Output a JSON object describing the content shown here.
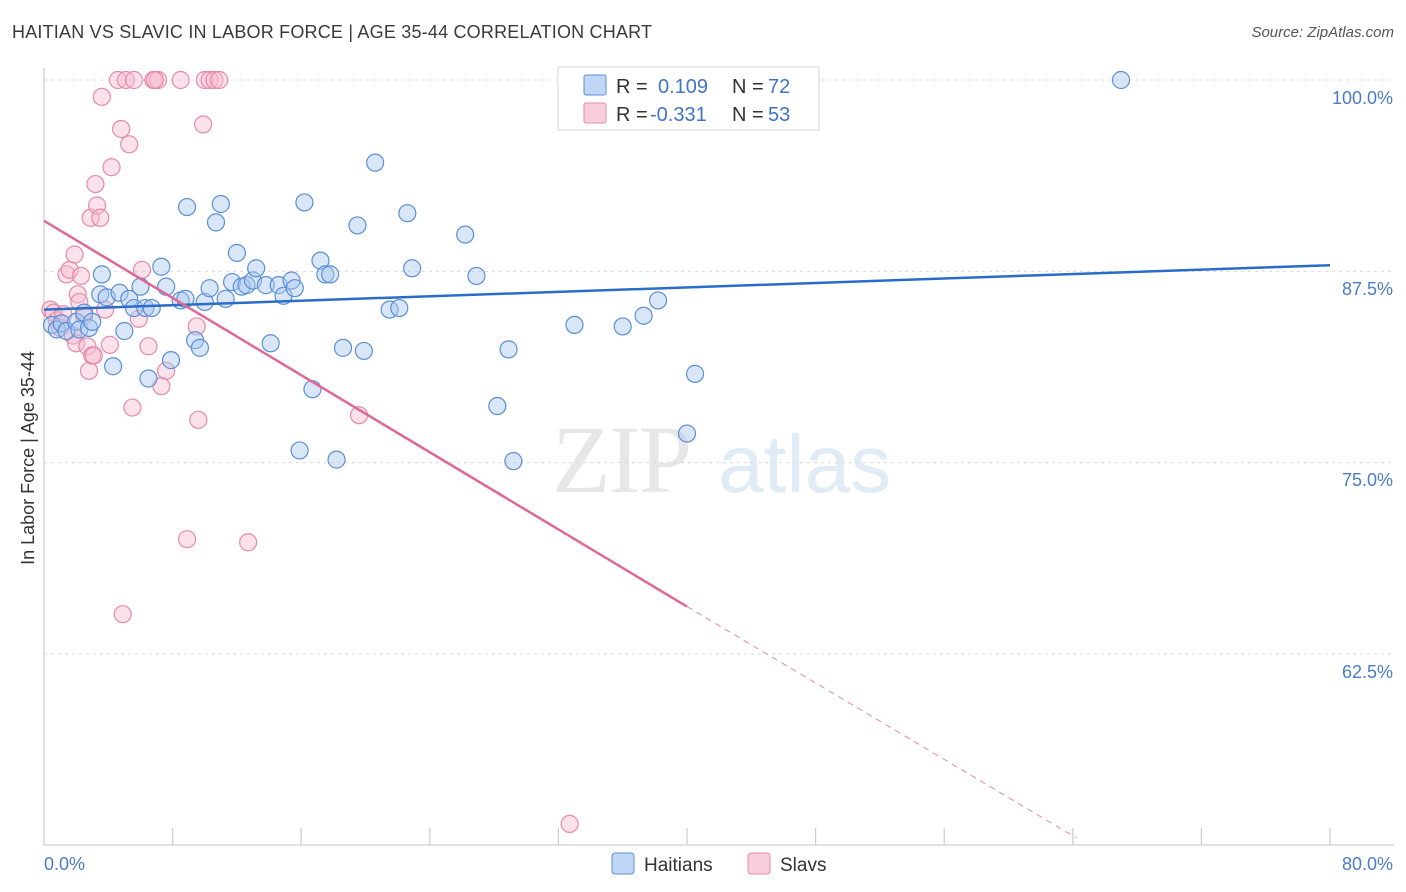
{
  "title": "HAITIAN VS SLAVIC IN LABOR FORCE | AGE 35-44 CORRELATION CHART",
  "source": "Source: ZipAtlas.com",
  "colors": {
    "haitians_fill": "#a9c8f0",
    "haitians_stroke": "#5b8fd6",
    "haitians_line": "#2a6dc9",
    "slavs_fill": "#f6bdd0",
    "slavs_stroke": "#e68aaa",
    "slavs_line": "#e06895",
    "value_text": "#3f74c6",
    "label_text": "#333333"
  },
  "legend": {
    "rows": [
      {
        "r_label": "R =",
        "r_value": "0.109",
        "n_label": "N =",
        "n_value": "72"
      },
      {
        "r_label": "R =",
        "r_value": "-0.331",
        "n_label": "N =",
        "n_value": "53"
      }
    ]
  },
  "bottom_legend": [
    "Haitians",
    "Slavs"
  ],
  "watermark": {
    "zip": "ZIP",
    "atlas": "atlas"
  },
  "chart_data": {
    "type": "scatter",
    "title": "HAITIAN VS SLAVIC IN LABOR FORCE | AGE 35-44 CORRELATION CHART",
    "xlabel": "",
    "ylabel": "In Labor Force | Age 35-44",
    "xlim": [
      0,
      80
    ],
    "ylim": [
      50.5,
      101.2
    ],
    "x_tick_labels": [
      "0.0%",
      "80.0%"
    ],
    "y_ticks": [
      100,
      87.5,
      75,
      62.5
    ],
    "y_tick_labels": [
      "100.0%",
      "87.5%",
      "75.0%",
      "62.5%"
    ],
    "grid": true,
    "series": [
      {
        "name": "Haitians",
        "r": 0.109,
        "n": 72,
        "trend": {
          "x0": 0,
          "y0": 85.0,
          "x1": 80,
          "y1": 87.9
        },
        "points": [
          [
            0.5,
            84.0
          ],
          [
            0.8,
            83.7
          ],
          [
            1.1,
            84.1
          ],
          [
            1.4,
            83.6
          ],
          [
            2.0,
            84.2
          ],
          [
            2.2,
            83.7
          ],
          [
            2.5,
            84.8
          ],
          [
            2.8,
            83.8
          ],
          [
            3.0,
            84.2
          ],
          [
            3.5,
            86.0
          ],
          [
            3.6,
            87.3
          ],
          [
            3.9,
            85.8
          ],
          [
            4.3,
            81.3
          ],
          [
            4.7,
            86.1
          ],
          [
            5.0,
            83.6
          ],
          [
            5.3,
            85.7
          ],
          [
            5.6,
            85.1
          ],
          [
            6.0,
            86.5
          ],
          [
            6.3,
            85.1
          ],
          [
            6.5,
            80.5
          ],
          [
            6.7,
            85.1
          ],
          [
            7.3,
            87.8
          ],
          [
            7.6,
            86.5
          ],
          [
            7.9,
            81.7
          ],
          [
            8.5,
            85.6
          ],
          [
            8.8,
            85.7
          ],
          [
            8.9,
            91.7
          ],
          [
            9.4,
            83.0
          ],
          [
            9.7,
            82.5
          ],
          [
            10.0,
            85.5
          ],
          [
            10.3,
            86.4
          ],
          [
            10.7,
            90.7
          ],
          [
            11.0,
            91.9
          ],
          [
            11.3,
            85.7
          ],
          [
            11.7,
            86.8
          ],
          [
            12.0,
            88.7
          ],
          [
            12.3,
            86.5
          ],
          [
            12.6,
            86.6
          ],
          [
            13.0,
            86.9
          ],
          [
            13.2,
            87.7
          ],
          [
            13.8,
            86.6
          ],
          [
            14.1,
            82.8
          ],
          [
            14.6,
            86.6
          ],
          [
            14.9,
            85.9
          ],
          [
            15.4,
            86.9
          ],
          [
            15.6,
            86.4
          ],
          [
            15.9,
            75.8
          ],
          [
            16.2,
            92.0
          ],
          [
            16.7,
            79.8
          ],
          [
            17.2,
            88.2
          ],
          [
            17.5,
            87.3
          ],
          [
            17.8,
            87.3
          ],
          [
            18.2,
            75.2
          ],
          [
            18.6,
            82.5
          ],
          [
            19.5,
            90.5
          ],
          [
            19.9,
            82.3
          ],
          [
            20.6,
            94.6
          ],
          [
            21.5,
            85.0
          ],
          [
            22.1,
            85.1
          ],
          [
            22.6,
            91.3
          ],
          [
            22.9,
            87.7
          ],
          [
            26.2,
            89.9
          ],
          [
            26.9,
            87.2
          ],
          [
            28.2,
            78.7
          ],
          [
            28.9,
            82.4
          ],
          [
            29.2,
            75.1
          ],
          [
            33.0,
            84.0
          ],
          [
            36.0,
            83.9
          ],
          [
            37.3,
            84.6
          ],
          [
            38.2,
            85.6
          ],
          [
            40.0,
            76.9
          ],
          [
            40.5,
            80.8
          ],
          [
            67.0,
            100.0
          ]
        ]
      },
      {
        "name": "Slavs",
        "r": -0.331,
        "n": 53,
        "trend": {
          "x0": 0,
          "y0": 90.8,
          "x1": 40.0,
          "y1": 65.6
        },
        "trend_dashed": {
          "x0": 40.0,
          "y0": 65.6,
          "x1": 64.2,
          "y1": 50.5
        },
        "points": [
          [
            0.4,
            85.0
          ],
          [
            0.6,
            84.8
          ],
          [
            0.8,
            84.3
          ],
          [
            1.0,
            83.8
          ],
          [
            1.2,
            84.7
          ],
          [
            1.4,
            87.3
          ],
          [
            1.6,
            87.6
          ],
          [
            1.8,
            83.3
          ],
          [
            1.9,
            88.6
          ],
          [
            2.0,
            82.8
          ],
          [
            2.1,
            86.0
          ],
          [
            2.2,
            85.5
          ],
          [
            2.3,
            87.2
          ],
          [
            2.5,
            84.6
          ],
          [
            2.7,
            82.6
          ],
          [
            2.8,
            81.0
          ],
          [
            2.9,
            91.0
          ],
          [
            3.0,
            82.0
          ],
          [
            3.1,
            82.0
          ],
          [
            3.2,
            93.2
          ],
          [
            3.3,
            91.8
          ],
          [
            3.5,
            91.0
          ],
          [
            3.6,
            98.9
          ],
          [
            3.8,
            85.0
          ],
          [
            4.1,
            82.7
          ],
          [
            4.2,
            94.3
          ],
          [
            4.6,
            100.0
          ],
          [
            4.8,
            96.8
          ],
          [
            5.1,
            100.0
          ],
          [
            5.3,
            95.8
          ],
          [
            5.5,
            78.6
          ],
          [
            5.6,
            100.0
          ],
          [
            5.9,
            84.4
          ],
          [
            6.1,
            87.6
          ],
          [
            6.5,
            82.6
          ],
          [
            6.8,
            100.0
          ],
          [
            7.1,
            100.0
          ],
          [
            7.3,
            80.0
          ],
          [
            7.6,
            81.0
          ],
          [
            8.5,
            100.0
          ],
          [
            8.9,
            70.0
          ],
          [
            9.5,
            83.9
          ],
          [
            9.6,
            77.8
          ],
          [
            9.9,
            97.1
          ],
          [
            10.0,
            100.0
          ],
          [
            10.3,
            100.0
          ],
          [
            10.6,
            100.0
          ],
          [
            10.9,
            100.0
          ],
          [
            12.7,
            69.8
          ],
          [
            19.6,
            78.1
          ],
          [
            4.9,
            65.1
          ],
          [
            32.7,
            51.4
          ],
          [
            6.9,
            100.0
          ]
        ]
      }
    ]
  }
}
